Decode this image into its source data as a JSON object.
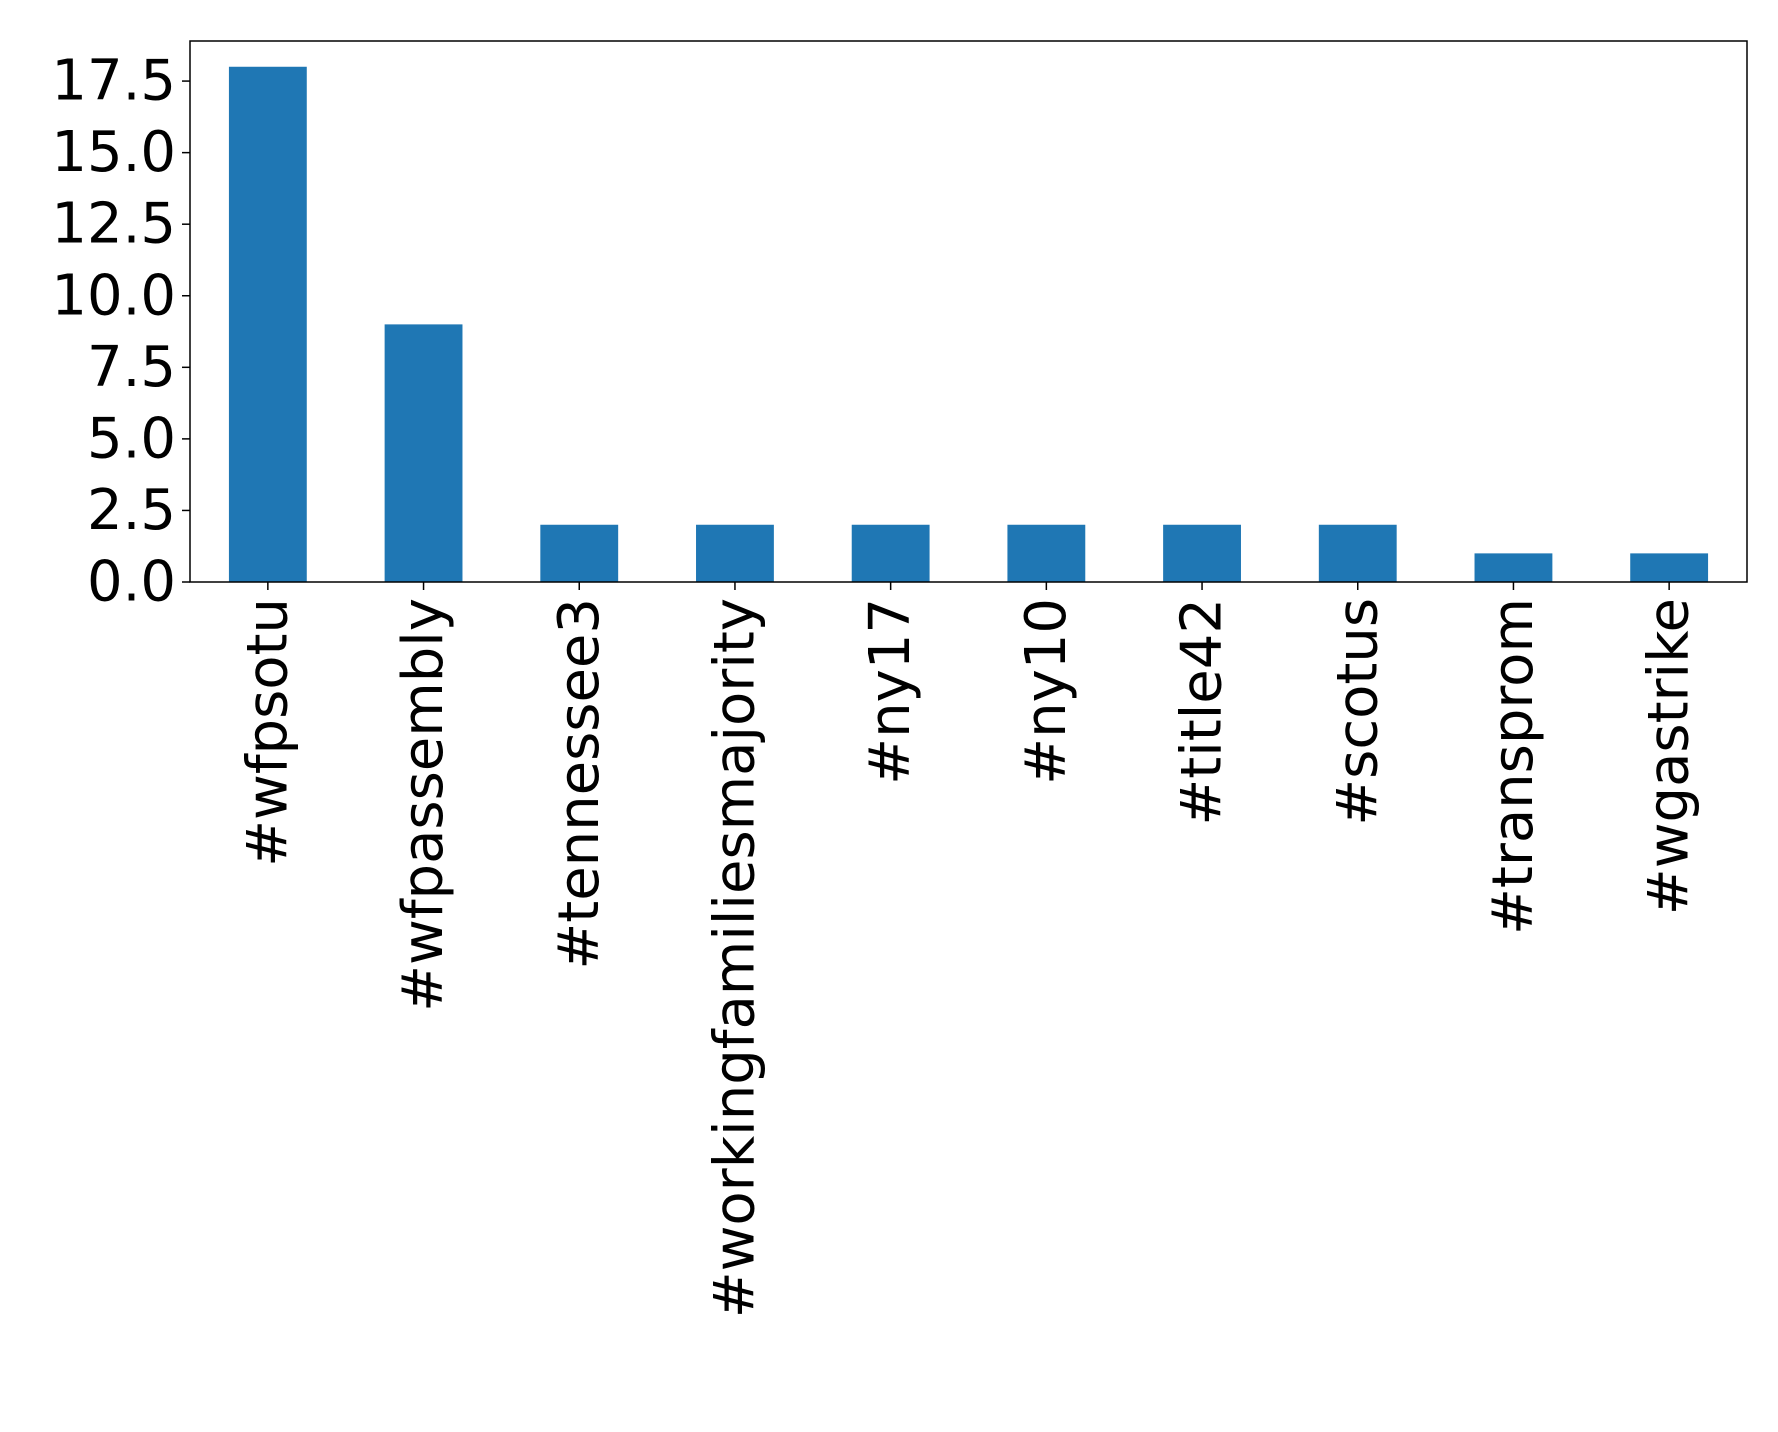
{
  "chart_data": {
    "type": "bar",
    "title": "",
    "xlabel": "",
    "ylabel": "",
    "categories": [
      "#wfpsotu",
      "#wfpassembly",
      "#tennessee3",
      "#workingfamiliesmajority",
      "#ny17",
      "#ny10",
      "#title42",
      "#scotus",
      "#transprom",
      "#wgastrike"
    ],
    "values": [
      18,
      9,
      2,
      2,
      2,
      2,
      2,
      2,
      1,
      1
    ],
    "ylim": [
      0,
      18.9
    ],
    "yticks": [
      "0.0",
      "2.5",
      "5.0",
      "7.5",
      "10.0",
      "12.5",
      "15.0",
      "17.5"
    ],
    "bar_color": "#1f77b4",
    "grid": false,
    "legend": "none"
  }
}
